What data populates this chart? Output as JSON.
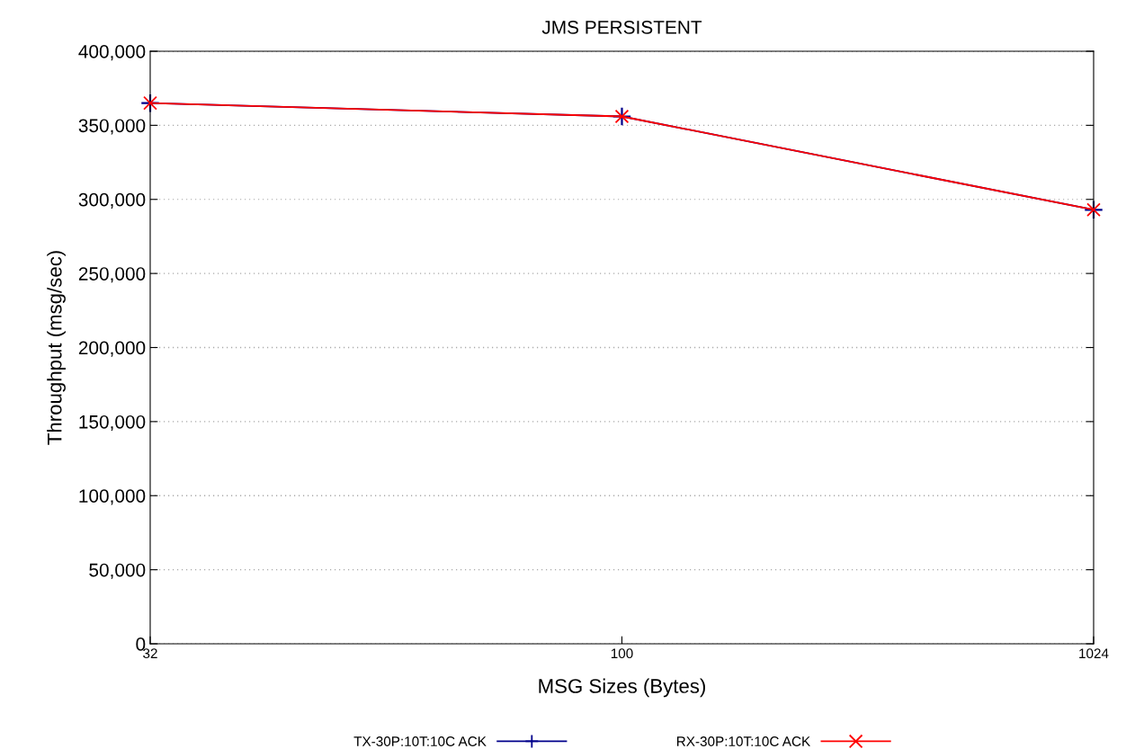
{
  "chart_data": {
    "type": "line",
    "title": "JMS PERSISTENT",
    "xlabel": "MSG Sizes (Bytes)",
    "ylabel": "Throughput (msg/sec)",
    "categories": [
      "32",
      "100",
      "1024"
    ],
    "series": [
      {
        "name": "TX-30P:10T:10C ACK",
        "color": "#00008b",
        "marker": "plus",
        "values": [
          365000,
          356000,
          293000
        ]
      },
      {
        "name": "RX-30P:10T:10C ACK",
        "color": "#ff0000",
        "marker": "cross",
        "values": [
          365000,
          356000,
          293000
        ]
      }
    ],
    "ylim": [
      0,
      400000
    ],
    "yticks": [
      {
        "value": 0,
        "label": "0"
      },
      {
        "value": 50000,
        "label": "50,000"
      },
      {
        "value": 100000,
        "label": "100,000"
      },
      {
        "value": 150000,
        "label": "150,000"
      },
      {
        "value": 200000,
        "label": "200,000"
      },
      {
        "value": 250000,
        "label": "250,000"
      },
      {
        "value": 300000,
        "label": "300,000"
      },
      {
        "value": 350000,
        "label": "350,000"
      },
      {
        "value": 400000,
        "label": "400,000"
      }
    ],
    "grid": "y",
    "legend": "bottom",
    "line_style": "solid"
  }
}
